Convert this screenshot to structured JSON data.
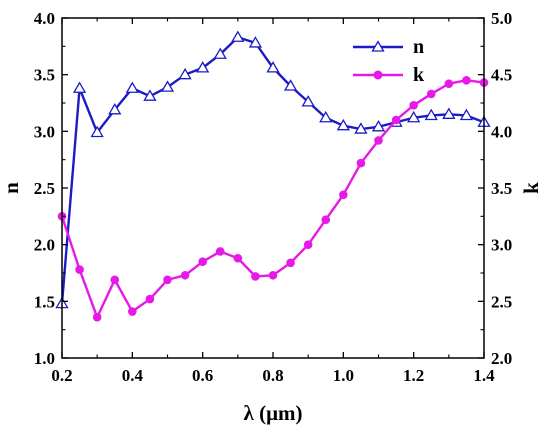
{
  "chart_data": {
    "type": "line",
    "xlabel": "λ (μm)",
    "ylabel_left": "n",
    "ylabel_right": "k",
    "xlim": [
      0.2,
      1.4
    ],
    "ylim_left": [
      1.0,
      4.0
    ],
    "ylim_right": [
      2.0,
      5.0
    ],
    "x_ticks": [
      "0.2",
      "0.4",
      "0.6",
      "0.8",
      "1.0",
      "1.2",
      "1.4"
    ],
    "y_left_ticks": [
      "1.0",
      "1.5",
      "2.0",
      "2.5",
      "3.0",
      "3.5",
      "4.0"
    ],
    "y_right_ticks": [
      "2.0",
      "2.5",
      "3.0",
      "3.5",
      "4.0",
      "4.5",
      "5.0"
    ],
    "grid": false,
    "legend_position": "top-right",
    "series": [
      {
        "name": "n",
        "axis": "left",
        "color": "#1c1cc4",
        "marker": "open-triangle",
        "x": [
          0.2,
          0.25,
          0.3,
          0.35,
          0.4,
          0.45,
          0.5,
          0.55,
          0.6,
          0.65,
          0.7,
          0.75,
          0.8,
          0.85,
          0.9,
          0.95,
          1.0,
          1.05,
          1.1,
          1.15,
          1.2,
          1.25,
          1.3,
          1.35,
          1.4
        ],
        "values": [
          1.48,
          3.38,
          2.99,
          3.19,
          3.38,
          3.31,
          3.39,
          3.5,
          3.56,
          3.68,
          3.83,
          3.78,
          3.56,
          3.4,
          3.26,
          3.12,
          3.05,
          3.02,
          3.04,
          3.08,
          3.12,
          3.14,
          3.15,
          3.14,
          3.08
        ]
      },
      {
        "name": "k",
        "axis": "right",
        "color": "#e619e6",
        "marker": "filled-circle",
        "x": [
          0.2,
          0.25,
          0.3,
          0.35,
          0.4,
          0.45,
          0.5,
          0.55,
          0.6,
          0.65,
          0.7,
          0.75,
          0.8,
          0.85,
          0.9,
          0.95,
          1.0,
          1.05,
          1.1,
          1.15,
          1.2,
          1.25,
          1.3,
          1.35,
          1.4
        ],
        "values": [
          3.25,
          2.78,
          2.36,
          2.69,
          2.41,
          2.52,
          2.69,
          2.73,
          2.85,
          2.94,
          2.88,
          2.72,
          2.73,
          2.84,
          3.0,
          3.22,
          3.44,
          3.72,
          3.92,
          4.1,
          4.23,
          4.33,
          4.42,
          4.45,
          4.43
        ]
      }
    ]
  }
}
